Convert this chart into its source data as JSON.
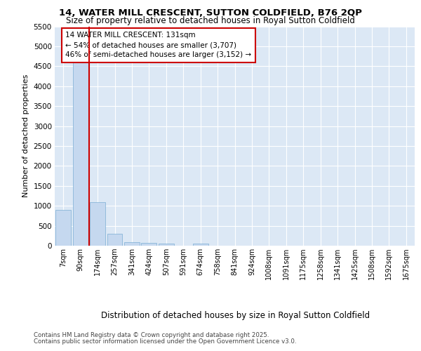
{
  "title1": "14, WATER MILL CRESCENT, SUTTON COLDFIELD, B76 2QP",
  "title2": "Size of property relative to detached houses in Royal Sutton Coldfield",
  "xlabel": "Distribution of detached houses by size in Royal Sutton Coldfield",
  "ylabel": "Number of detached properties",
  "categories": [
    "7sqm",
    "90sqm",
    "174sqm",
    "257sqm",
    "341sqm",
    "424sqm",
    "507sqm",
    "591sqm",
    "674sqm",
    "758sqm",
    "841sqm",
    "924sqm",
    "1008sqm",
    "1091sqm",
    "1175sqm",
    "1258sqm",
    "1341sqm",
    "1425sqm",
    "1508sqm",
    "1592sqm",
    "1675sqm"
  ],
  "values": [
    900,
    4600,
    1100,
    300,
    80,
    70,
    50,
    0,
    50,
    0,
    0,
    0,
    0,
    0,
    0,
    0,
    0,
    0,
    0,
    0,
    0
  ],
  "bar_color": "#c5d8ef",
  "bar_edge_color": "#7aaed4",
  "red_line_x": 1.5,
  "annotation_line1": "14 WATER MILL CRESCENT: 131sqm",
  "annotation_line2": "← 54% of detached houses are smaller (3,707)",
  "annotation_line3": "46% of semi-detached houses are larger (3,152) →",
  "annotation_box_color": "#ffffff",
  "annotation_border_color": "#cc0000",
  "footer1": "Contains HM Land Registry data © Crown copyright and database right 2025.",
  "footer2": "Contains public sector information licensed under the Open Government Licence v3.0.",
  "fig_bg_color": "#ffffff",
  "plot_bg_color": "#dce8f5",
  "grid_color": "#ffffff",
  "ylim": [
    0,
    5500
  ],
  "yticks": [
    0,
    500,
    1000,
    1500,
    2000,
    2500,
    3000,
    3500,
    4000,
    4500,
    5000,
    5500
  ]
}
